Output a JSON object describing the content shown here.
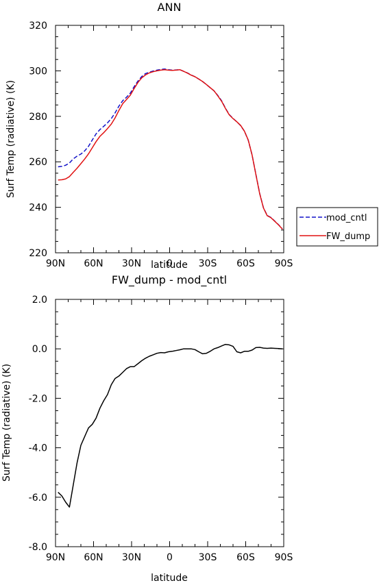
{
  "chart_data": [
    {
      "type": "line",
      "title": "ANN",
      "xlabel": "latitude",
      "ylabel": "Surf Temp (radiative) (K)",
      "xlim": [
        90,
        -90
      ],
      "ylim": [
        220,
        320
      ],
      "x_ticks": [
        {
          "value": 90,
          "label": "90N"
        },
        {
          "value": 60,
          "label": "60N"
        },
        {
          "value": 30,
          "label": "30N"
        },
        {
          "value": 0,
          "label": "0"
        },
        {
          "value": -30,
          "label": "30S"
        },
        {
          "value": -60,
          "label": "60S"
        },
        {
          "value": -90,
          "label": "90S"
        }
      ],
      "y_ticks": [
        {
          "value": 220,
          "label": "220"
        },
        {
          "value": 240,
          "label": "240"
        },
        {
          "value": 260,
          "label": "260"
        },
        {
          "value": 280,
          "label": "280"
        },
        {
          "value": 300,
          "label": "300"
        },
        {
          "value": 320,
          "label": "320"
        }
      ],
      "legend": "right",
      "series": [
        {
          "name": "mod_cntl",
          "color": "#1010c8",
          "dash": "dashed",
          "x": [
            88,
            85,
            82,
            79,
            76,
            73,
            70,
            67,
            64,
            61,
            58,
            55,
            52,
            49,
            46,
            43,
            40,
            37,
            34,
            31,
            28,
            25,
            22,
            19,
            16,
            13,
            10,
            7,
            4,
            1,
            -2,
            -5,
            -8,
            -11,
            -14,
            -17,
            -20,
            -23,
            -26,
            -29,
            -32,
            -35,
            -38,
            -41,
            -44,
            -47,
            -50,
            -53,
            -56,
            -59,
            -62,
            -65,
            -68,
            -71,
            -74,
            -77,
            -80,
            -83,
            -86,
            -89
          ],
          "y": [
            257.8,
            258.0,
            258.5,
            259.5,
            261.3,
            262.5,
            263.4,
            264.8,
            266.8,
            269.6,
            272.3,
            274.2,
            275.6,
            277.1,
            279.0,
            281.5,
            284.5,
            286.9,
            288.4,
            290.2,
            293.0,
            295.5,
            297.5,
            298.8,
            299.4,
            299.9,
            300.3,
            300.6,
            300.8,
            300.5,
            300.3,
            300.4,
            300.5,
            299.8,
            299.1,
            298.2,
            297.4,
            296.4,
            295.3,
            294.0,
            292.6,
            291.2,
            289.2,
            286.8,
            283.6,
            280.8,
            279.1,
            277.6,
            275.9,
            273.5,
            269.5,
            263.0,
            254.6,
            246.1,
            239.8,
            236.4,
            235.5,
            233.9,
            232.3,
            230.4
          ]
        },
        {
          "name": "FW_dump",
          "color": "#e01010",
          "dash": "solid",
          "x": [
            88,
            85,
            82,
            79,
            76,
            73,
            70,
            67,
            64,
            61,
            58,
            55,
            52,
            49,
            46,
            43,
            40,
            37,
            34,
            31,
            28,
            25,
            22,
            19,
            16,
            13,
            10,
            7,
            4,
            1,
            -2,
            -5,
            -8,
            -11,
            -14,
            -17,
            -20,
            -23,
            -26,
            -29,
            -32,
            -35,
            -38,
            -41,
            -44,
            -47,
            -50,
            -53,
            -56,
            -59,
            -62,
            -65,
            -68,
            -71,
            -74,
            -77,
            -80,
            -83,
            -86,
            -89
          ],
          "y": [
            252.0,
            252.1,
            252.5,
            253.5,
            255.4,
            257.2,
            259.2,
            261.2,
            263.5,
            266.2,
            268.9,
            271.2,
            272.8,
            274.6,
            276.6,
            279.3,
            282.6,
            285.6,
            287.4,
            289.3,
            292.2,
            294.9,
            296.9,
            298.2,
            299.1,
            299.6,
            300.0,
            300.3,
            300.5,
            300.3,
            300.2,
            300.3,
            300.5,
            299.8,
            299.0,
            298.1,
            297.4,
            296.4,
            295.3,
            294.0,
            292.6,
            291.2,
            289.0,
            286.6,
            283.5,
            280.7,
            279.0,
            277.6,
            276.0,
            273.5,
            269.6,
            263.0,
            254.5,
            246.0,
            239.7,
            236.3,
            235.4,
            233.8,
            232.2,
            230.4
          ]
        }
      ]
    },
    {
      "type": "line",
      "title": "FW_dump - mod_cntl",
      "xlabel": "latitude",
      "ylabel": "Surf Temp (radiative) (K)",
      "xlim": [
        90,
        -90
      ],
      "ylim": [
        -8,
        2
      ],
      "x_ticks": [
        {
          "value": 90,
          "label": "90N"
        },
        {
          "value": 60,
          "label": "60N"
        },
        {
          "value": 30,
          "label": "30N"
        },
        {
          "value": 0,
          "label": "0"
        },
        {
          "value": -30,
          "label": "30S"
        },
        {
          "value": -60,
          "label": "60S"
        },
        {
          "value": -90,
          "label": "90S"
        }
      ],
      "y_ticks": [
        {
          "value": 2,
          "label": "2.0"
        },
        {
          "value": 0,
          "label": "0.0"
        },
        {
          "value": -2,
          "label": "-2.0"
        },
        {
          "value": -4,
          "label": "-4.0"
        },
        {
          "value": -6,
          "label": "-6.0"
        },
        {
          "value": -8,
          "label": "-8.0"
        }
      ],
      "series": [
        {
          "name": "",
          "color": "#000000",
          "dash": "solid",
          "x": [
            88,
            85,
            82,
            79,
            76,
            73,
            70,
            67,
            64,
            61,
            58,
            55,
            52,
            49,
            46,
            43,
            40,
            37,
            34,
            31,
            28,
            25,
            22,
            19,
            16,
            13,
            10,
            7,
            4,
            1,
            -2,
            -5,
            -8,
            -11,
            -14,
            -17,
            -20,
            -23,
            -26,
            -29,
            -32,
            -35,
            -38,
            -41,
            -44,
            -47,
            -50,
            -53,
            -56,
            -59,
            -62,
            -65,
            -68,
            -71,
            -74,
            -77,
            -80,
            -83,
            -86,
            -89
          ],
          "y": [
            -5.8,
            -5.95,
            -6.2,
            -6.4,
            -5.5,
            -4.6,
            -3.9,
            -3.55,
            -3.2,
            -3.05,
            -2.8,
            -2.4,
            -2.1,
            -1.85,
            -1.45,
            -1.2,
            -1.1,
            -0.95,
            -0.8,
            -0.72,
            -0.72,
            -0.6,
            -0.48,
            -0.38,
            -0.3,
            -0.24,
            -0.18,
            -0.15,
            -0.16,
            -0.12,
            -0.1,
            -0.07,
            -0.04,
            0.0,
            0.0,
            0.0,
            -0.03,
            -0.12,
            -0.2,
            -0.18,
            -0.1,
            0.0,
            0.05,
            0.12,
            0.18,
            0.16,
            0.1,
            -0.12,
            -0.16,
            -0.1,
            -0.1,
            -0.05,
            0.05,
            0.06,
            0.03,
            0.02,
            0.03,
            0.02,
            0.01,
            0.0
          ]
        }
      ]
    }
  ]
}
